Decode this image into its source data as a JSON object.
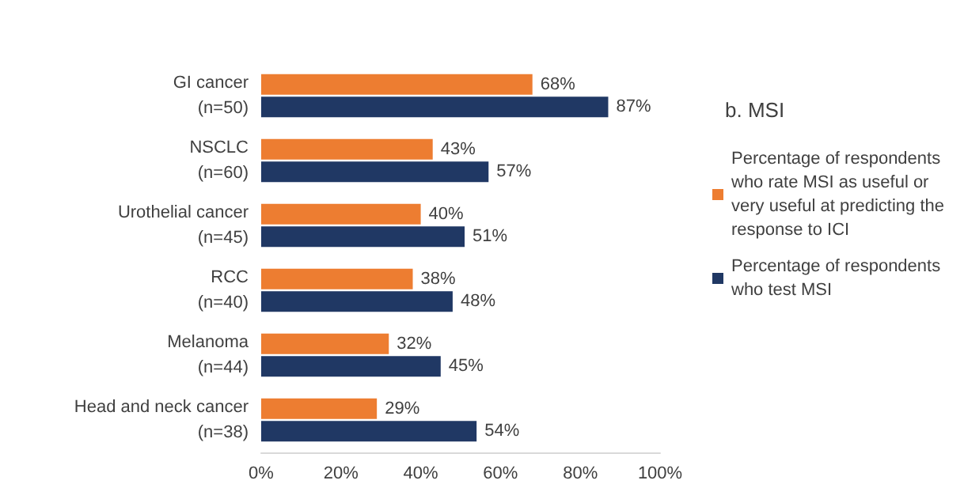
{
  "chart_data": {
    "type": "bar",
    "orientation": "horizontal",
    "legend_title": "b. MSI",
    "categories": [
      "GI cancer\n(n=50)",
      "NSCLC\n(n=60)",
      "Urothelial cancer\n(n=45)",
      "RCC\n(n=40)",
      "Melanoma\n(n=44)",
      "Head and neck cancer\n(n=38)"
    ],
    "series": [
      {
        "name": "Percentage of respondents who rate MSI as useful or very useful at predicting the response to ICI",
        "color": "#ed7d31",
        "values": [
          68,
          43,
          40,
          38,
          32,
          29
        ],
        "value_labels": [
          "68%",
          "43%",
          "40%",
          "38%",
          "32%",
          "29%"
        ]
      },
      {
        "name": "Percentage of respondents who test MSI",
        "color": "#203864",
        "values": [
          87,
          57,
          51,
          48,
          45,
          54
        ],
        "value_labels": [
          "87%",
          "57%",
          "51%",
          "48%",
          "45%",
          "54%"
        ]
      }
    ],
    "xlim": [
      0,
      100
    ],
    "xticks": [
      {
        "value": 0,
        "label": "0%"
      },
      {
        "value": 20,
        "label": "20%"
      },
      {
        "value": 40,
        "label": "40%"
      },
      {
        "value": 60,
        "label": "60%"
      },
      {
        "value": 80,
        "label": "80%"
      },
      {
        "value": 100,
        "label": "100%"
      }
    ],
    "grid": false,
    "legend": "right"
  }
}
